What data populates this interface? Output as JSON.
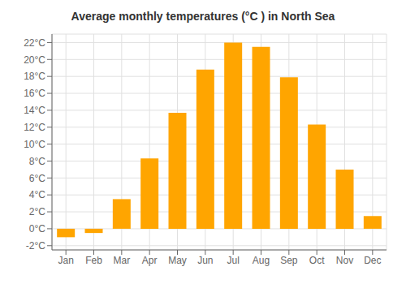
{
  "chart_data": {
    "type": "bar",
    "title": "Average monthly temperatures (°C ) in North Sea",
    "categories": [
      "Jan",
      "Feb",
      "Mar",
      "Apr",
      "May",
      "Jun",
      "Jul",
      "Aug",
      "Sep",
      "Oct",
      "Nov",
      "Dec"
    ],
    "values": [
      -1.0,
      -0.5,
      3.5,
      8.3,
      13.7,
      18.8,
      22.0,
      21.5,
      17.9,
      12.3,
      7.0,
      1.5
    ],
    "color": "#FFA500",
    "ylim": [
      -2.5,
      23
    ],
    "yticks": [
      {
        "value": -2,
        "label": "-2°C"
      },
      {
        "value": 0,
        "label": "0°C"
      },
      {
        "value": 2,
        "label": "2°C"
      },
      {
        "value": 4,
        "label": "4°C"
      },
      {
        "value": 6,
        "label": "6°C"
      },
      {
        "value": 8,
        "label": "8°C"
      },
      {
        "value": 10,
        "label": "10°C"
      },
      {
        "value": 12,
        "label": "12°C"
      },
      {
        "value": 14,
        "label": "14°C"
      },
      {
        "value": 16,
        "label": "16°C"
      },
      {
        "value": 18,
        "label": "18°C"
      },
      {
        "value": 20,
        "label": "20°C"
      },
      {
        "value": 22,
        "label": "22°C"
      }
    ],
    "grid": true
  }
}
